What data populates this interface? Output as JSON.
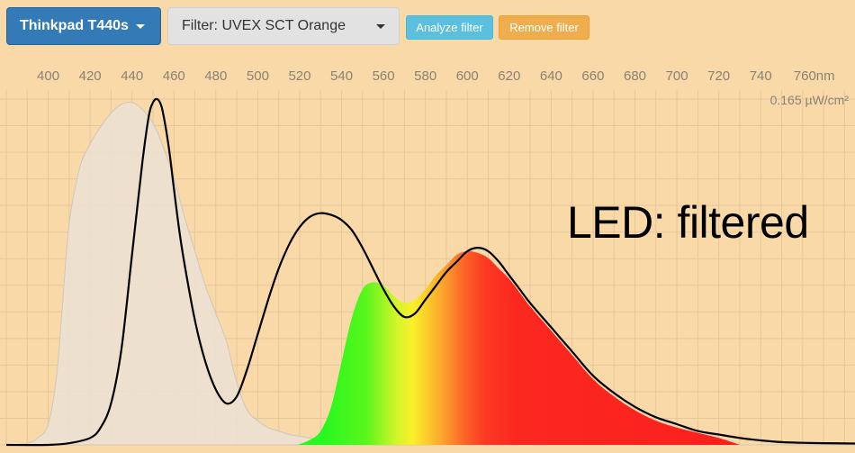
{
  "toolbar": {
    "device_label": "Thinkpad T440s",
    "filter_label": "Filter: UVEX SCT Orange",
    "analyze_label": "Analyze filter",
    "remove_label": "Remove filter"
  },
  "overlay_text": "LED: filtered",
  "chart_data": {
    "type": "area",
    "x_unit": "nm",
    "x_tick_labels": [
      "400",
      "420",
      "440",
      "460",
      "480",
      "500",
      "520",
      "540",
      "560",
      "580",
      "600",
      "620",
      "640",
      "660",
      "680",
      "700",
      "720",
      "740",
      "760nm"
    ],
    "x_ticks": [
      400,
      420,
      440,
      460,
      480,
      500,
      520,
      540,
      560,
      580,
      600,
      620,
      640,
      660,
      680,
      700,
      720,
      740,
      760
    ],
    "xlim": [
      380,
      785
    ],
    "y_max_label": "0.165 µW/cm²",
    "ylim": [
      0,
      1
    ],
    "grid": true,
    "colors": {
      "background": "#fad9a8",
      "grid": "#e6c79b",
      "reference_fill": "#ece0d2",
      "measured_line": "#000000"
    },
    "series": [
      {
        "role": "reference",
        "x": [
          380,
          390,
          395,
          400,
          404,
          407,
          410,
          415,
          420,
          425,
          430,
          435,
          440,
          445,
          450,
          455,
          460,
          465,
          470,
          475,
          480,
          485,
          490,
          495,
          500,
          505,
          510,
          515,
          520,
          530,
          540,
          550,
          560,
          570,
          785
        ],
        "y": [
          0,
          0.005,
          0.02,
          0.06,
          0.2,
          0.42,
          0.64,
          0.8,
          0.87,
          0.92,
          0.96,
          0.985,
          0.99,
          0.97,
          0.93,
          0.86,
          0.77,
          0.66,
          0.56,
          0.46,
          0.38,
          0.3,
          0.18,
          0.1,
          0.07,
          0.05,
          0.04,
          0.03,
          0.025,
          0.015,
          0.01,
          0.005,
          0.002,
          0,
          0
        ]
      },
      {
        "role": "measured",
        "x": [
          380,
          400,
          410,
          420,
          425,
          430,
          435,
          440,
          445,
          448,
          450,
          452,
          454,
          456,
          458,
          460,
          463,
          466,
          470,
          475,
          480,
          485,
          490,
          495,
          500,
          505,
          510,
          515,
          520,
          525,
          530,
          535,
          540,
          545,
          550,
          555,
          560,
          565,
          570,
          575,
          580,
          585,
          590,
          595,
          600,
          605,
          610,
          615,
          620,
          625,
          630,
          640,
          650,
          660,
          670,
          680,
          690,
          700,
          710,
          720,
          730,
          740,
          750,
          760,
          770,
          785
        ],
        "y": [
          0,
          0,
          0.005,
          0.02,
          0.05,
          0.12,
          0.28,
          0.55,
          0.82,
          0.95,
          0.99,
          1,
          0.98,
          0.92,
          0.84,
          0.74,
          0.6,
          0.49,
          0.36,
          0.24,
          0.16,
          0.12,
          0.14,
          0.22,
          0.32,
          0.42,
          0.51,
          0.58,
          0.63,
          0.66,
          0.67,
          0.665,
          0.65,
          0.62,
          0.57,
          0.51,
          0.45,
          0.4,
          0.37,
          0.38,
          0.42,
          0.46,
          0.5,
          0.53,
          0.56,
          0.57,
          0.56,
          0.53,
          0.49,
          0.45,
          0.41,
          0.34,
          0.27,
          0.2,
          0.15,
          0.11,
          0.08,
          0.06,
          0.04,
          0.03,
          0.02,
          0.013,
          0.008,
          0.006,
          0.005,
          0.004
        ]
      },
      {
        "role": "filtered",
        "x": [
          519,
          525,
          530,
          535,
          540,
          545,
          550,
          555,
          560,
          565,
          570,
          575,
          580,
          585,
          590,
          595,
          600,
          605,
          610,
          615,
          620,
          625,
          630,
          640,
          650,
          660,
          670,
          680,
          690,
          700,
          710,
          720,
          730
        ],
        "y": [
          0,
          0.015,
          0.04,
          0.11,
          0.24,
          0.37,
          0.45,
          0.47,
          0.46,
          0.43,
          0.41,
          0.42,
          0.45,
          0.49,
          0.52,
          0.55,
          0.56,
          0.555,
          0.54,
          0.51,
          0.48,
          0.44,
          0.4,
          0.33,
          0.26,
          0.19,
          0.14,
          0.1,
          0.07,
          0.05,
          0.035,
          0.02,
          0
        ]
      }
    ]
  }
}
